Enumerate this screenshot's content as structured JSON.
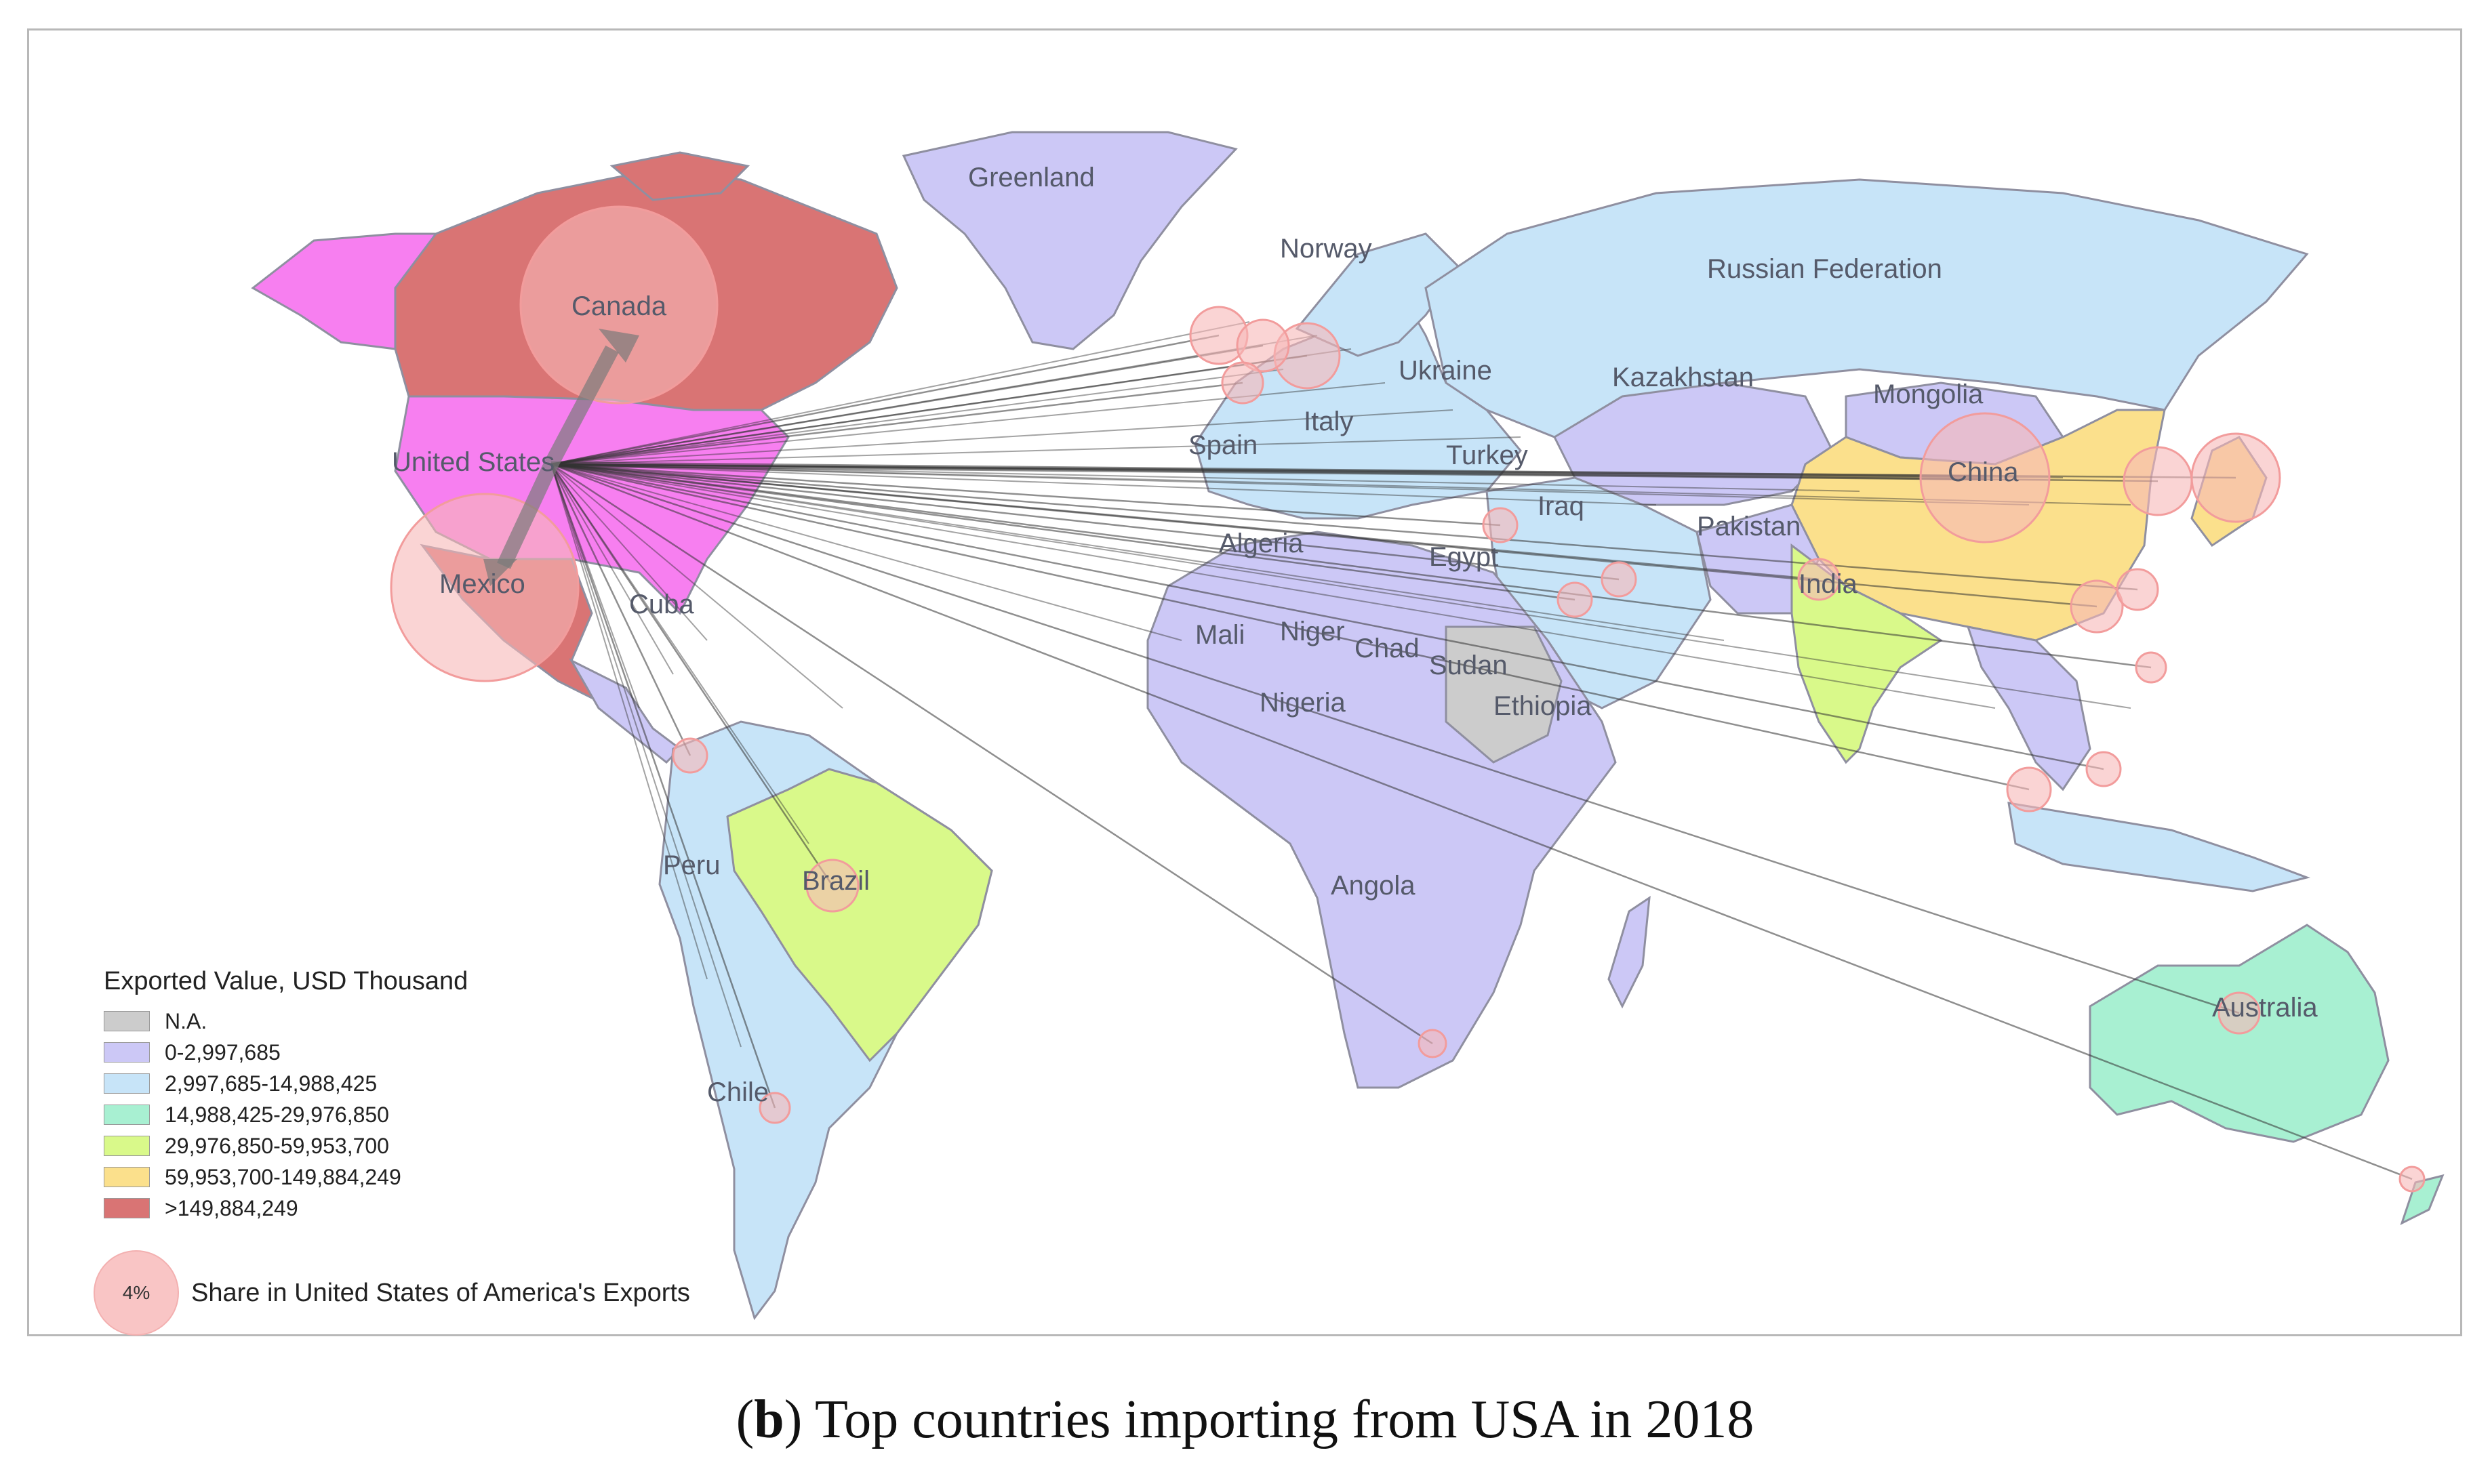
{
  "caption": {
    "prefix": "(",
    "letter": "b",
    "suffix": ") Top countries importing from USA in 2018"
  },
  "legend": {
    "title": "Exported Value, USD Thousand",
    "classes": [
      {
        "label": "N.A.",
        "color": "#cccccc"
      },
      {
        "label": "0-2,997,685",
        "color": "#ccc8f6"
      },
      {
        "label": "2,997,685-14,988,425",
        "color": "#c7e4f8"
      },
      {
        "label": "14,988,425-29,976,850",
        "color": "#a8f0d2"
      },
      {
        "label": "29,976,850-59,953,700",
        "color": "#d9f98a"
      },
      {
        "label": "59,953,700-149,884,249",
        "color": "#fbe08c"
      },
      {
        "label": ">149,884,249",
        "color": "#d97474"
      }
    ],
    "bubble": {
      "sample_value": "4%",
      "label": "Share in United States of America's Exports",
      "color": "#f9c5c5"
    }
  },
  "exporter": {
    "name": "United States",
    "color": "#f77ff0"
  },
  "countries": [
    {
      "name": "Canada",
      "color": "#d97474"
    },
    {
      "name": "Mexico",
      "color": "#d97474"
    },
    {
      "name": "Greenland",
      "color": "#ccc8f6"
    },
    {
      "name": "Russian Federation",
      "color": "#c7e4f8"
    },
    {
      "name": "Norway",
      "color": "#c7e4f8"
    },
    {
      "name": "Ukraine",
      "color": "#ccc8f6"
    },
    {
      "name": "Kazakhstan",
      "color": "#ccc8f6"
    },
    {
      "name": "Mongolia",
      "color": "#ccc8f6"
    },
    {
      "name": "China",
      "color": "#fbe08c"
    },
    {
      "name": "Italy",
      "color": "#c7e4f8"
    },
    {
      "name": "Spain",
      "color": "#c7e4f8"
    },
    {
      "name": "Turkey",
      "color": "#c7e4f8"
    },
    {
      "name": "Iraq",
      "color": "#ccc8f6"
    },
    {
      "name": "Pakistan",
      "color": "#ccc8f6"
    },
    {
      "name": "India",
      "color": "#d9f98a"
    },
    {
      "name": "Algeria",
      "color": "#ccc8f6"
    },
    {
      "name": "Egypt",
      "color": "#ccc8f6"
    },
    {
      "name": "Mali",
      "color": "#ccc8f6"
    },
    {
      "name": "Niger",
      "color": "#ccc8f6"
    },
    {
      "name": "Chad",
      "color": "#ccc8f6"
    },
    {
      "name": "Sudan",
      "color": "#cccccc"
    },
    {
      "name": "Ethiopia",
      "color": "#ccc8f6"
    },
    {
      "name": "Nigeria",
      "color": "#ccc8f6"
    },
    {
      "name": "Angola",
      "color": "#ccc8f6"
    },
    {
      "name": "Cuba",
      "color": "#ccc8f6"
    },
    {
      "name": "Brazil",
      "color": "#d9f98a"
    },
    {
      "name": "Peru",
      "color": "#c7e4f8"
    },
    {
      "name": "Chile",
      "color": "#c7e4f8"
    },
    {
      "name": "Australia",
      "color": "#a8f0d2"
    }
  ],
  "colors": {
    "flow_line": "#333333",
    "bubble": "#f7b8b8",
    "bubble_edge": "#f29c9c",
    "frame": "#b8b8b8",
    "border": "#8f8fa0"
  }
}
